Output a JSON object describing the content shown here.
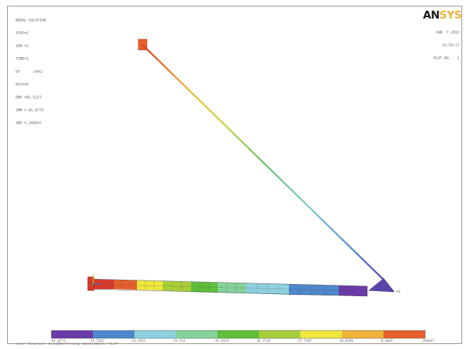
{
  "plot": {
    "title": "NODAL SOLUTION",
    "info_lines": [
      "STEP=1",
      "SUB =1",
      "TIME=1",
      "UY      (AVG)",
      "RSYS=0",
      "DMX =81.5227",
      "SMN =-81.8773",
      "SMX =.209647"
    ],
    "logo_an": "AN",
    "logo_sys": "SYS",
    "date": "JAN  7 2016",
    "time": "19:59:17",
    "plot_no": "PLOT NO.   1",
    "node_label_right": "X3",
    "legend": {
      "labels": [
        "-81.8773",
        "-72.7562",
        "-63.6351",
        "-54.514",
        "-45.3929",
        "-36.2718",
        "-27.1507",
        "-18.0296",
        "-8.9085",
        ".209647"
      ],
      "colors": [
        "#6a3aa8",
        "#4f87cc",
        "#8fd0dd",
        "#86d29a",
        "#5fbf3a",
        "#a8cf3a",
        "#efe83c",
        "#efb33a",
        "#e5602d",
        "#d63a2a"
      ]
    },
    "caption": "Liner Structure, Axis&Reinforcing (beam/cable), Y1=UY"
  }
}
